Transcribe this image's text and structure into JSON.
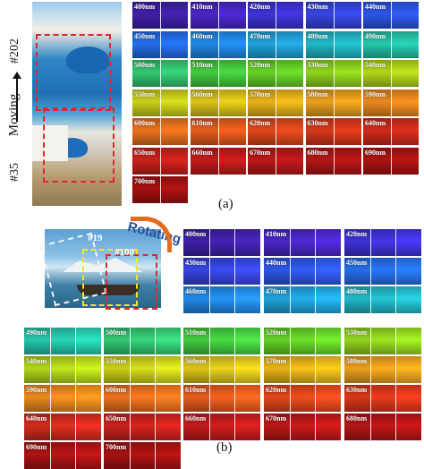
{
  "panel_a": {
    "caption": "(a)",
    "motion_label": "Moving",
    "frame_top": "#202",
    "frame_bottom": "#35",
    "wavelengths": [
      "400nm",
      "410nm",
      "420nm",
      "430nm",
      "440nm",
      "450nm",
      "460nm",
      "470nm",
      "480nm",
      "490nm",
      "500nm",
      "510nm",
      "520nm",
      "530nm",
      "540nm",
      "550nm",
      "560nm",
      "570nm",
      "580nm",
      "590nm",
      "600nm",
      "610nm",
      "620nm",
      "630nm",
      "640nm",
      "650nm",
      "660nm",
      "670nm",
      "680nm",
      "690nm",
      "700nm"
    ],
    "colors": [
      "#3a1e9c",
      "#4424b8",
      "#3a2fc8",
      "#3340d0",
      "#2a50d6",
      "#2166d8",
      "#1f7fd6",
      "#1e97cc",
      "#1faab8",
      "#22b89e",
      "#2fb86a",
      "#3fbd3a",
      "#5ec224",
      "#86c51c",
      "#a6c618",
      "#bcc117",
      "#cbb617",
      "#d6a616",
      "#d9941a",
      "#da7f1c",
      "#d8691b",
      "#d4551b",
      "#cf431a",
      "#c93419",
      "#c2281a",
      "#bb1f1a",
      "#b51a1a",
      "#ad1616",
      "#a61414",
      "#a01212",
      "#9a1010"
    ]
  },
  "panel_b": {
    "caption": "(b)",
    "motion_label": "Rotating",
    "frame_a": "#19",
    "frame_b": "#100",
    "wavelengths": [
      "400nm",
      "410nm",
      "420nm",
      "430nm",
      "440nm",
      "450nm",
      "460nm",
      "470nm",
      "480nm",
      "490nm",
      "500nm",
      "510nm",
      "520nm",
      "530nm",
      "540nm",
      "550nm",
      "560nm",
      "570nm",
      "580nm",
      "590nm",
      "600nm",
      "610nm",
      "620nm",
      "630nm",
      "640nm",
      "650nm",
      "660nm",
      "670nm",
      "680nm",
      "690nm",
      "700nm"
    ],
    "colors": [
      "#3a1e9c",
      "#4424b8",
      "#3a2fc8",
      "#3340d0",
      "#2a50d6",
      "#2166d8",
      "#1f7fd6",
      "#1e97cc",
      "#1faab8",
      "#22b89e",
      "#2fb86a",
      "#3fbd3a",
      "#5ec224",
      "#86c51c",
      "#a6c618",
      "#bcc117",
      "#cbb617",
      "#d6a616",
      "#d9941a",
      "#da7f1c",
      "#d8691b",
      "#d4551b",
      "#cf431a",
      "#c93419",
      "#c2281a",
      "#bb1f1a",
      "#b51a1a",
      "#ad1616",
      "#a61414",
      "#a01212",
      "#9a1010"
    ]
  }
}
